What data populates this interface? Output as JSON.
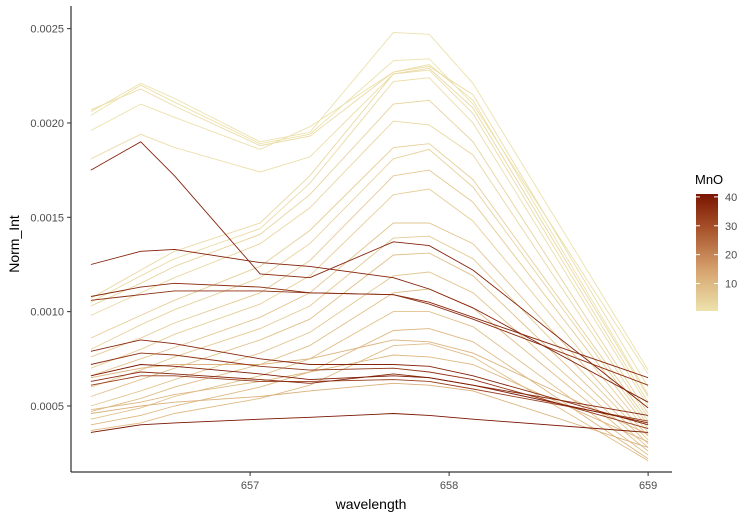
{
  "chart_data": {
    "type": "line",
    "xlabel": "wavelength",
    "ylabel": "Norm_Int",
    "xlim": [
      656.1,
      659.12
    ],
    "ylim": [
      0.00015,
      0.00262
    ],
    "x_ticks": [
      657,
      658,
      659
    ],
    "x_tick_labels": [
      "657",
      "658",
      "659"
    ],
    "y_ticks": [
      0.0005,
      0.001,
      0.0015,
      0.002,
      0.0025
    ],
    "y_tick_labels": [
      "0.0005",
      "0.0010",
      "0.0015",
      "0.0020",
      "0.0025"
    ],
    "grid": false,
    "legend": {
      "title": "MnO",
      "position": "right",
      "type": "colorbar",
      "ticks": [
        10,
        20,
        30,
        40
      ],
      "tick_labels": [
        "10",
        "20",
        "30",
        "40"
      ],
      "range": [
        0.5,
        41
      ],
      "color_low": "#ede3ad",
      "color_high": "#7a1500"
    },
    "x": [
      656.2,
      656.45,
      656.62,
      657.05,
      657.3,
      657.72,
      657.9,
      658.12,
      659.0
    ],
    "series": [
      {
        "mno": 1,
        "values": [
          0.00206,
          0.00221,
          0.00213,
          0.0019,
          0.00195,
          0.00248,
          0.00247,
          0.00221,
          0.00069
        ]
      },
      {
        "mno": 1,
        "values": [
          0.00204,
          0.0022,
          0.00211,
          0.00189,
          0.00194,
          0.00233,
          0.00234,
          0.0021,
          0.00067
        ]
      },
      {
        "mno": 2,
        "values": [
          0.00207,
          0.00218,
          0.00209,
          0.00188,
          0.00193,
          0.00227,
          0.0023,
          0.00215,
          0.0006
        ]
      },
      {
        "mno": 1,
        "values": [
          0.00196,
          0.0021,
          0.00203,
          0.00186,
          0.00198,
          0.00227,
          0.00231,
          0.00212,
          0.00056
        ]
      },
      {
        "mno": 2,
        "values": [
          0.00181,
          0.00194,
          0.00187,
          0.00174,
          0.00182,
          0.00226,
          0.00228,
          0.00205,
          0.00052
        ]
      },
      {
        "mno": 3,
        "values": [
          0.00107,
          0.00122,
          0.00132,
          0.00147,
          0.00172,
          0.00226,
          0.00229,
          0.00208,
          0.00055
        ]
      },
      {
        "mno": 2,
        "values": [
          0.00105,
          0.00119,
          0.00128,
          0.00144,
          0.00168,
          0.00222,
          0.00224,
          0.002,
          0.0005
        ]
      },
      {
        "mno": 4,
        "values": [
          0.00103,
          0.00115,
          0.00124,
          0.00141,
          0.00162,
          0.0021,
          0.00212,
          0.0019,
          0.00046
        ]
      },
      {
        "mno": 3,
        "values": [
          0.00098,
          0.0011,
          0.00118,
          0.00136,
          0.00155,
          0.00201,
          0.00199,
          0.00183,
          0.00044
        ]
      },
      {
        "mno": 5,
        "values": [
          0.00086,
          0.00098,
          0.00106,
          0.00124,
          0.00143,
          0.00187,
          0.00189,
          0.0017,
          0.00042
        ]
      },
      {
        "mno": 4,
        "values": [
          0.0008,
          0.00093,
          0.00101,
          0.00118,
          0.00136,
          0.00181,
          0.00186,
          0.00166,
          0.0004
        ]
      },
      {
        "mno": 6,
        "values": [
          0.00076,
          0.00086,
          0.00094,
          0.0011,
          0.00127,
          0.00172,
          0.00175,
          0.00158,
          0.00038
        ]
      },
      {
        "mno": 5,
        "values": [
          0.0007,
          0.0008,
          0.00088,
          0.00104,
          0.00119,
          0.00162,
          0.00165,
          0.00148,
          0.00036
        ]
      },
      {
        "mno": 7,
        "values": [
          0.00066,
          0.00075,
          0.00081,
          0.00097,
          0.0011,
          0.00147,
          0.00147,
          0.00136,
          0.00034
        ]
      },
      {
        "mno": 6,
        "values": [
          0.0006,
          0.00069,
          0.00076,
          0.00091,
          0.00103,
          0.00139,
          0.0014,
          0.00128,
          0.00032
        ]
      },
      {
        "mno": 8,
        "values": [
          0.00055,
          0.00064,
          0.0007,
          0.00085,
          0.00096,
          0.0013,
          0.00131,
          0.00119,
          0.0003
        ]
      },
      {
        "mno": 7,
        "values": [
          0.0005,
          0.00058,
          0.00064,
          0.00078,
          0.00089,
          0.00119,
          0.00121,
          0.0011,
          0.00028
        ]
      },
      {
        "mno": 9,
        "values": [
          0.00047,
          0.00054,
          0.0006,
          0.00072,
          0.00082,
          0.0011,
          0.00112,
          0.00102,
          0.00026
        ]
      },
      {
        "mno": 8,
        "values": [
          0.00043,
          0.00049,
          0.00055,
          0.00066,
          0.00075,
          0.001,
          0.001,
          0.00092,
          0.00024
        ]
      },
      {
        "mno": 10,
        "values": [
          0.0004,
          0.00045,
          0.0005,
          0.0006,
          0.00068,
          0.0009,
          0.00091,
          0.00084,
          0.00022
        ]
      },
      {
        "mno": 9,
        "values": [
          0.00037,
          0.00041,
          0.00046,
          0.00054,
          0.00061,
          0.00082,
          0.00083,
          0.00076,
          0.00021
        ]
      },
      {
        "mno": 11,
        "values": [
          0.00065,
          0.0007,
          0.00072,
          0.00072,
          0.00075,
          0.00085,
          0.00084,
          0.00078,
          0.00035
        ]
      },
      {
        "mno": 10,
        "values": [
          0.00048,
          0.00052,
          0.00056,
          0.00063,
          0.00068,
          0.00077,
          0.00076,
          0.00072,
          0.00031
        ]
      },
      {
        "mno": 12,
        "values": [
          0.00046,
          0.0005,
          0.00052,
          0.00055,
          0.00058,
          0.00062,
          0.00061,
          0.00058,
          0.00028
        ]
      },
      {
        "mno": 38,
        "values": [
          0.00175,
          0.0019,
          0.00172,
          0.0012,
          0.00118,
          0.00137,
          0.00135,
          0.00122,
          0.00049
        ]
      },
      {
        "mno": 39,
        "values": [
          0.00125,
          0.00132,
          0.00133,
          0.00126,
          0.00124,
          0.00118,
          0.00112,
          0.00102,
          0.00052
        ]
      },
      {
        "mno": 37,
        "values": [
          0.00108,
          0.00113,
          0.00115,
          0.00113,
          0.0011,
          0.00109,
          0.00105,
          0.00097,
          0.00065
        ]
      },
      {
        "mno": 36,
        "values": [
          0.00106,
          0.00109,
          0.00111,
          0.00111,
          0.0011,
          0.00109,
          0.00104,
          0.00096,
          0.00061
        ]
      },
      {
        "mno": 38,
        "values": [
          0.00079,
          0.00085,
          0.00083,
          0.00075,
          0.00072,
          0.00072,
          0.00071,
          0.00066,
          0.0004
        ]
      },
      {
        "mno": 35,
        "values": [
          0.00072,
          0.00078,
          0.00077,
          0.00071,
          0.00069,
          0.0007,
          0.00068,
          0.00064,
          0.00038
        ]
      },
      {
        "mno": 40,
        "values": [
          0.00066,
          0.00072,
          0.00071,
          0.00067,
          0.00064,
          0.00066,
          0.00065,
          0.00061,
          0.00041
        ]
      },
      {
        "mno": 37,
        "values": [
          0.00063,
          0.00068,
          0.00067,
          0.00064,
          0.00062,
          0.00067,
          0.00065,
          0.00061,
          0.00045
        ]
      },
      {
        "mno": 33,
        "values": [
          0.00061,
          0.00066,
          0.00066,
          0.00063,
          0.00063,
          0.00064,
          0.00063,
          0.00059,
          0.00042
        ]
      },
      {
        "mno": 41,
        "values": [
          0.00036,
          0.0004,
          0.00041,
          0.00043,
          0.00044,
          0.00046,
          0.00045,
          0.00043,
          0.00036
        ]
      }
    ]
  }
}
